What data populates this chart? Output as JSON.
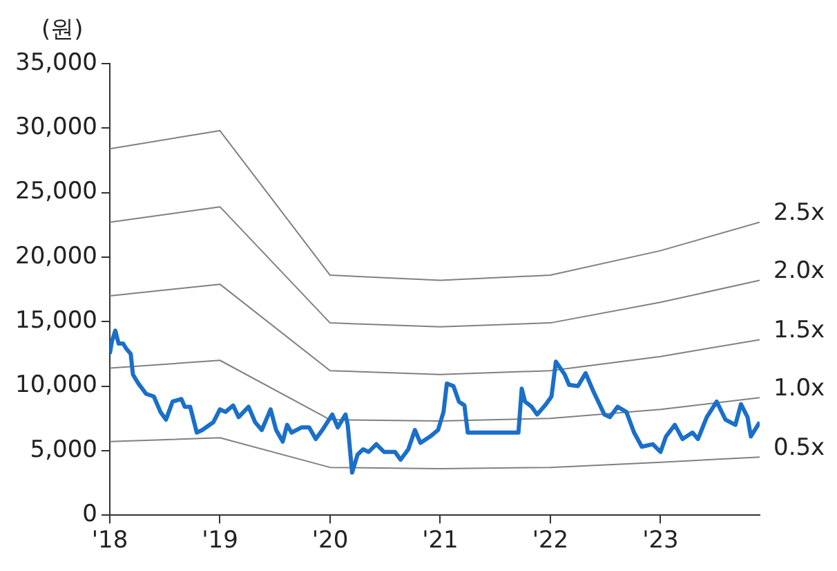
{
  "chart_data": {
    "type": "line",
    "ylabel": "(원)",
    "xlim": [
      2018,
      2023.9
    ],
    "xticks": [
      {
        "value": 2018,
        "label": "'18"
      },
      {
        "value": 2019,
        "label": "'19"
      },
      {
        "value": 2020,
        "label": "'20"
      },
      {
        "value": 2021,
        "label": "'21"
      },
      {
        "value": 2022,
        "label": "'22"
      },
      {
        "value": 2023,
        "label": "'23"
      }
    ],
    "ylim": [
      0,
      35000
    ],
    "yticks": [
      {
        "value": 0,
        "label": "0"
      },
      {
        "value": 5000,
        "label": "5,000"
      },
      {
        "value": 10000,
        "label": "10,000"
      },
      {
        "value": 15000,
        "label": "15,000"
      },
      {
        "value": 20000,
        "label": "20,000"
      },
      {
        "value": 25000,
        "label": "25,000"
      },
      {
        "value": 30000,
        "label": "30,000"
      },
      {
        "value": 35000,
        "label": "35,000"
      }
    ],
    "grid": false,
    "legend": false,
    "marker": "none",
    "line_style": "solid",
    "series": [
      {
        "name": "2.5x",
        "color": "#808080",
        "x": [
          2018,
          2019,
          2020,
          2021,
          2022,
          2023,
          2023.9
        ],
        "values": [
          28400,
          29800,
          18600,
          18200,
          18600,
          20500,
          22700
        ]
      },
      {
        "name": "2.0x",
        "color": "#808080",
        "x": [
          2018,
          2019,
          2020,
          2021,
          2022,
          2023,
          2023.9
        ],
        "values": [
          22700,
          23900,
          14900,
          14600,
          14900,
          16500,
          18200
        ]
      },
      {
        "name": "1.5x",
        "color": "#808080",
        "x": [
          2018,
          2019,
          2020,
          2021,
          2022,
          2023,
          2023.9
        ],
        "values": [
          17000,
          17900,
          11200,
          10900,
          11200,
          12300,
          13600
        ]
      },
      {
        "name": "1.0x",
        "color": "#808080",
        "x": [
          2018,
          2019,
          2020,
          2021,
          2022,
          2023,
          2023.9
        ],
        "values": [
          11400,
          12000,
          7400,
          7300,
          7500,
          8200,
          9100
        ]
      },
      {
        "name": "0.5x",
        "color": "#808080",
        "x": [
          2018,
          2019,
          2020,
          2021,
          2022,
          2023,
          2023.9
        ],
        "values": [
          5700,
          6000,
          3700,
          3600,
          3700,
          4100,
          4500
        ]
      },
      {
        "color": "#1a6fc9",
        "x": [
          2018.0,
          2018.02,
          2018.05,
          2018.08,
          2018.12,
          2018.15,
          2018.19,
          2018.21,
          2018.26,
          2018.33,
          2018.4,
          2018.46,
          2018.51,
          2018.57,
          2018.65,
          2018.68,
          2018.73,
          2018.79,
          2018.84,
          2018.94,
          2019.0,
          2019.05,
          2019.12,
          2019.17,
          2019.26,
          2019.32,
          2019.38,
          2019.46,
          2019.51,
          2019.57,
          2019.61,
          2019.65,
          2019.74,
          2019.81,
          2019.87,
          2019.93,
          2020.02,
          2020.07,
          2020.14,
          2020.16,
          2020.2,
          2020.25,
          2020.3,
          2020.35,
          2020.42,
          2020.49,
          2020.59,
          2020.64,
          2020.71,
          2020.77,
          2020.82,
          2020.91,
          2020.98,
          2021.03,
          2021.06,
          2021.12,
          2021.17,
          2021.22,
          2021.25,
          2021.71,
          2021.74,
          2021.77,
          2021.83,
          2021.88,
          2021.96,
          2022.01,
          2022.05,
          2022.13,
          2022.17,
          2022.25,
          2022.32,
          2022.39,
          2022.49,
          2022.54,
          2022.61,
          2022.69,
          2022.76,
          2022.83,
          2022.93,
          2023.0,
          2023.05,
          2023.13,
          2023.2,
          2023.29,
          2023.34,
          2023.42,
          2023.51,
          2023.59,
          2023.68,
          2023.73,
          2023.79,
          2023.82,
          2023.9
        ],
        "values": [
          12500,
          13500,
          14300,
          13300,
          13300,
          12900,
          12500,
          10900,
          10200,
          9400,
          9200,
          8000,
          7400,
          8800,
          9000,
          8400,
          8400,
          6400,
          6600,
          7200,
          8200,
          8000,
          8500,
          7600,
          8400,
          7200,
          6600,
          8200,
          6600,
          5700,
          7000,
          6400,
          6800,
          6800,
          5900,
          6600,
          7800,
          6800,
          7800,
          7000,
          3300,
          4700,
          5100,
          4900,
          5500,
          4900,
          4900,
          4300,
          5100,
          6600,
          5600,
          6100,
          6600,
          8000,
          10200,
          10000,
          8800,
          8500,
          6400,
          6400,
          9800,
          8800,
          8400,
          7800,
          8600,
          9200,
          11900,
          10900,
          10100,
          10000,
          11000,
          9600,
          7800,
          7600,
          8400,
          8000,
          6400,
          5300,
          5500,
          4900,
          6100,
          7000,
          5900,
          6400,
          5900,
          7600,
          8800,
          7400,
          7000,
          8600,
          7600,
          6100,
          7200
        ]
      }
    ]
  }
}
